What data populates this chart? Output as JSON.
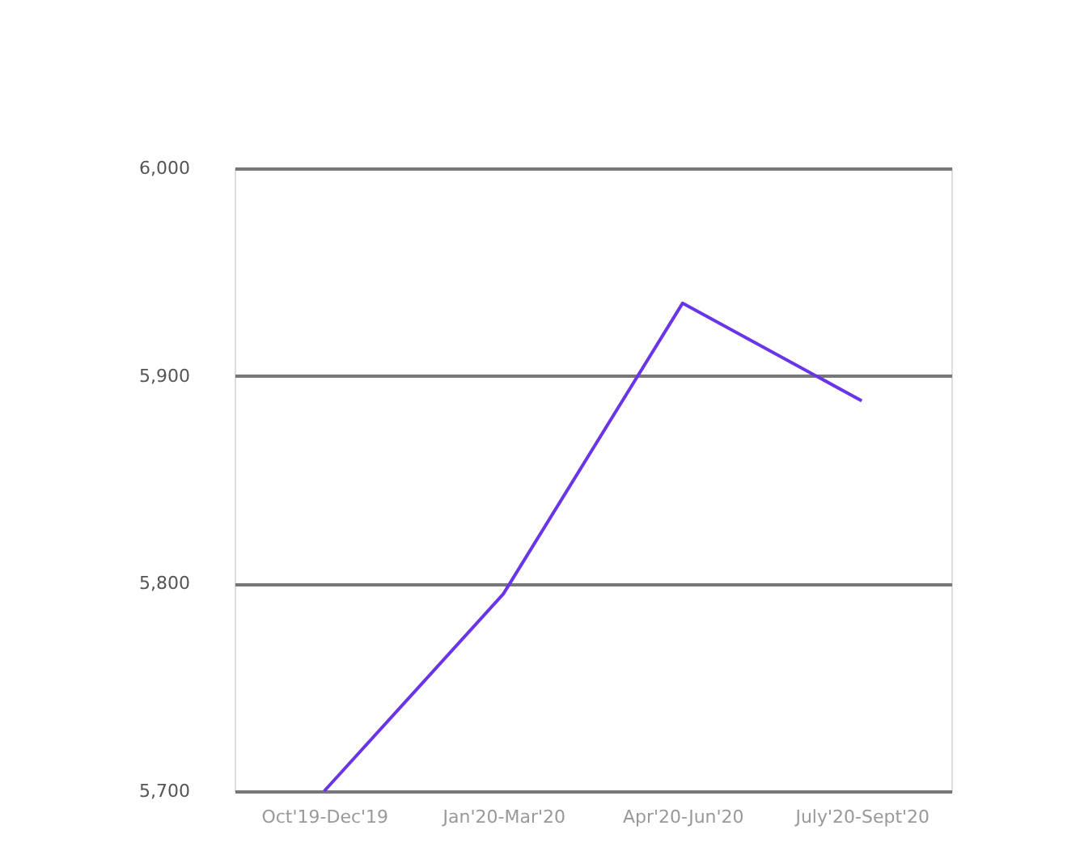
{
  "chart_data": {
    "type": "line",
    "categories": [
      "Oct'19-Dec'19",
      "Jan'20-Mar'20",
      "Apr'20-Jun'20",
      "July'20-Sept'20"
    ],
    "series": [
      {
        "color": "#6a35e8",
        "values": [
          5700,
          5795,
          5935,
          5888
        ]
      }
    ],
    "ylim": [
      5700,
      6000
    ],
    "yticks": [
      {
        "value": 5700,
        "label": "5,700"
      },
      {
        "value": 5800,
        "label": "5,800"
      },
      {
        "value": 5900,
        "label": "5,900"
      },
      {
        "value": 6000,
        "label": "6,000"
      }
    ],
    "grid": "y",
    "legend": false,
    "marker": "none",
    "line_style": "solid"
  }
}
